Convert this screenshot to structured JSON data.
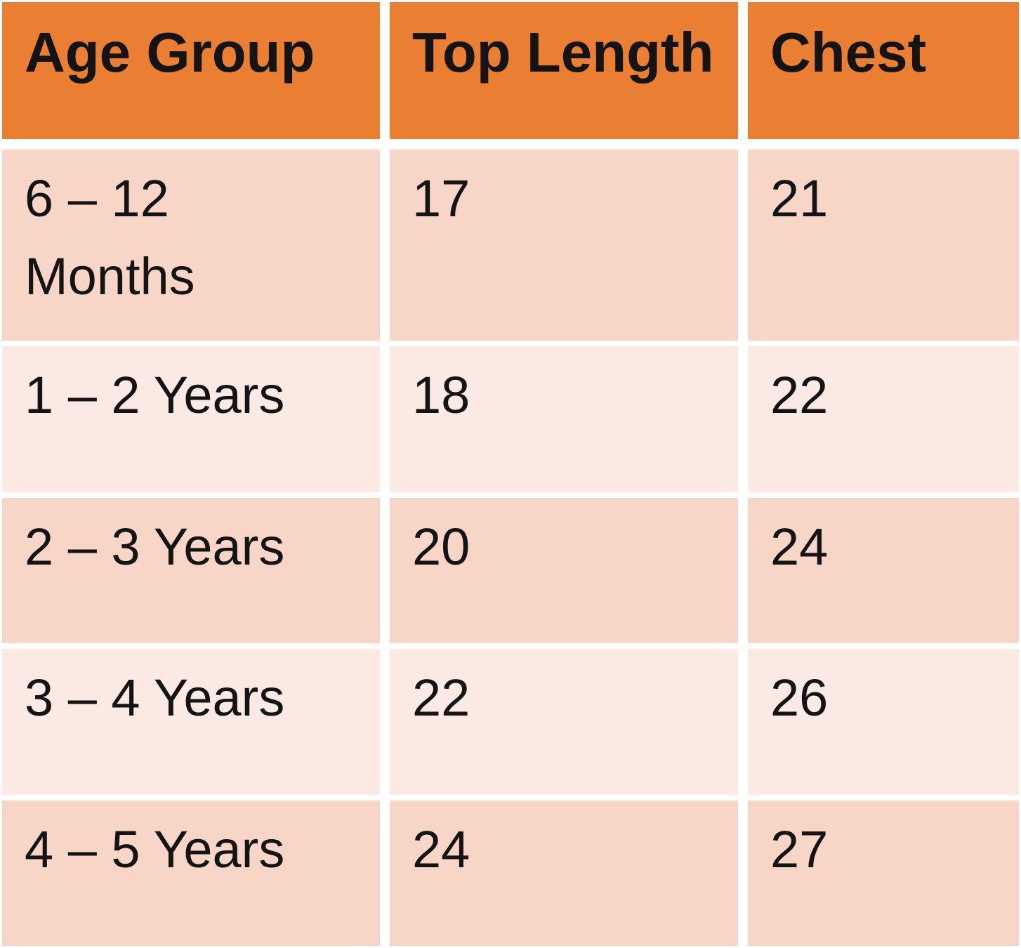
{
  "table": {
    "header": [
      "Age Group",
      "Top Length",
      "Chest"
    ],
    "rows": [
      [
        "6 – 12\nMonths",
        "17",
        "21"
      ],
      [
        "1 – 2 Years",
        "18",
        "22"
      ],
      [
        "2 – 3 Years",
        "20",
        "24"
      ],
      [
        "3 – 4 Years",
        "22",
        "26"
      ],
      [
        "4 – 5 Years",
        "24",
        "27"
      ]
    ],
    "colors": {
      "header_bg": "#EA7E32",
      "band_dark": "#F7D6C8",
      "band_light": "#FBEAE4",
      "text": "#141414",
      "gap": "#FFFFFF"
    }
  },
  "chart_data": {
    "type": "table",
    "title": "",
    "columns": [
      "Age Group",
      "Top Length",
      "Chest"
    ],
    "rows": [
      [
        "6 – 12 Months",
        17,
        21
      ],
      [
        "1 – 2 Years",
        18,
        22
      ],
      [
        "2 – 3 Years",
        20,
        24
      ],
      [
        "3 – 4 Years",
        22,
        26
      ],
      [
        "4 – 5 Years",
        24,
        27
      ]
    ],
    "layout_hints": {
      "header_fill": "orange",
      "banded_rows": true,
      "band_order": [
        "dark",
        "light",
        "dark",
        "light",
        "dark"
      ]
    }
  }
}
